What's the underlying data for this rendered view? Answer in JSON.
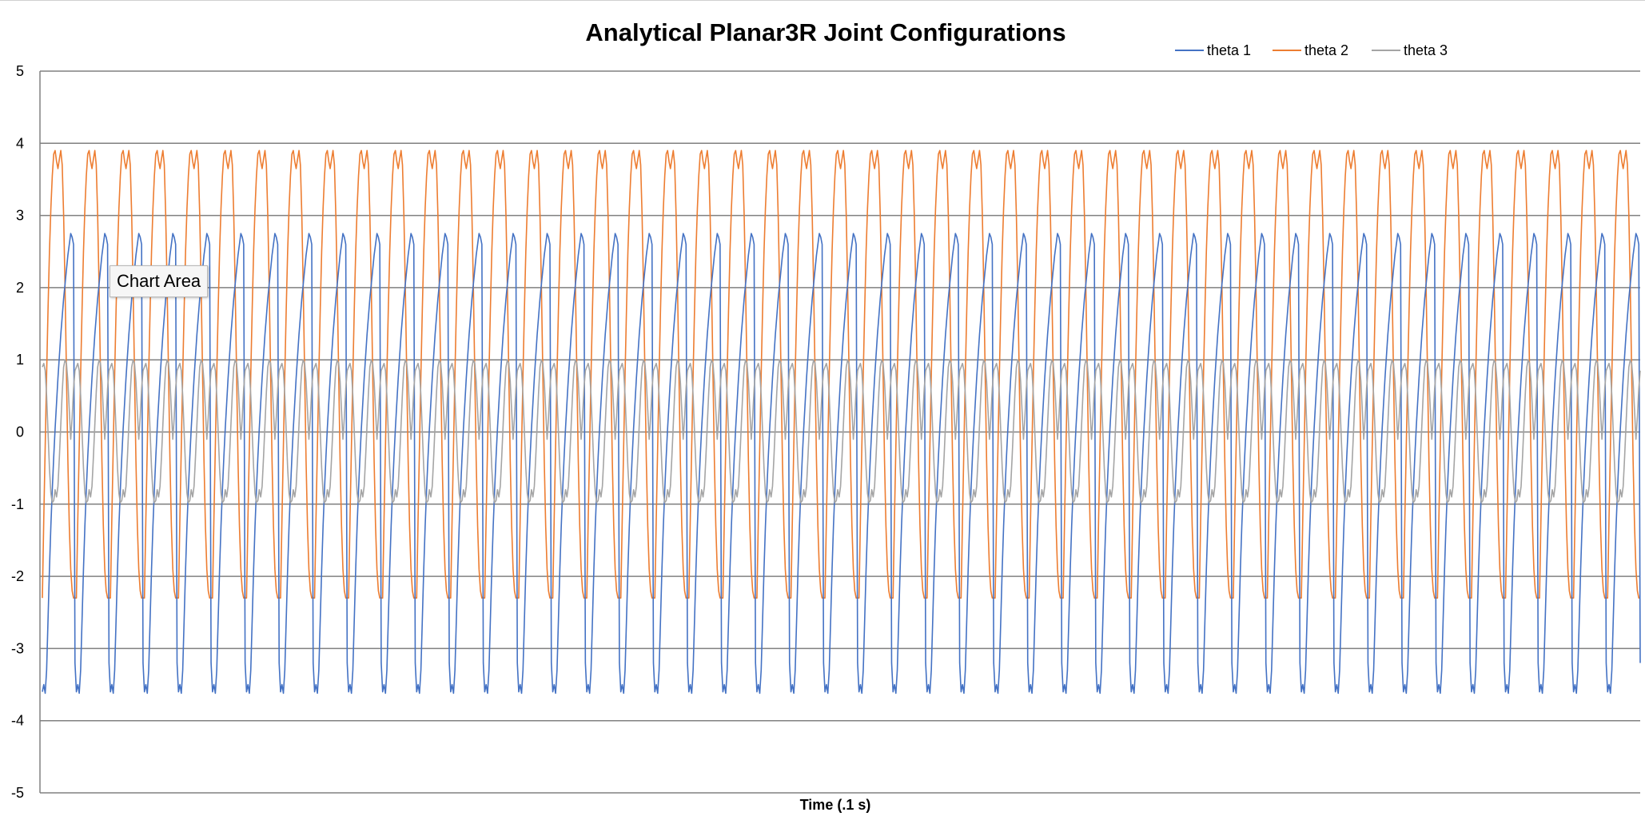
{
  "chart_data": {
    "type": "line",
    "title": "Analytical Planar3R Joint Configurations",
    "xlabel": "Time (.1 s)",
    "ylabel": "",
    "ylim": [
      -5,
      5
    ],
    "yticks": [
      5,
      4,
      3,
      2,
      1,
      0,
      -1,
      -2,
      -3,
      -4,
      -5
    ],
    "grid": true,
    "legend_position": "top-right",
    "cycles": 47,
    "points_per_cycle": 24,
    "series": [
      {
        "name": "theta 1",
        "color": "#4472C4",
        "cycle_values": [
          -3.6,
          -3.5,
          -3.62,
          -3.3,
          -2.6,
          -1.9,
          -1.3,
          -0.8,
          -0.35,
          0.05,
          0.4,
          0.75,
          1.05,
          1.35,
          1.6,
          1.85,
          2.05,
          2.25,
          2.45,
          2.6,
          2.75,
          2.7,
          2.6,
          -3.2
        ]
      },
      {
        "name": "theta 2",
        "color": "#ED7D31",
        "cycle_values": [
          -2.3,
          -1.2,
          -0.2,
          0.8,
          1.7,
          2.5,
          3.1,
          3.55,
          3.85,
          3.9,
          3.75,
          3.65,
          3.78,
          3.9,
          3.7,
          3.0,
          2.0,
          0.8,
          -0.4,
          -1.3,
          -1.9,
          -2.2,
          -2.3,
          -2.3
        ]
      },
      {
        "name": "theta 3",
        "color": "#A5A5A5",
        "cycle_values": [
          0.9,
          0.95,
          0.85,
          0.5,
          0.0,
          -0.5,
          -0.85,
          -0.98,
          -0.95,
          -0.8,
          -0.9,
          -0.75,
          -0.35,
          0.1,
          0.55,
          0.9,
          1.0,
          0.95,
          0.7,
          0.3,
          -0.1,
          0.2,
          0.6,
          0.85
        ]
      }
    ]
  },
  "overlay": {
    "tooltip_label": "Chart Area"
  }
}
